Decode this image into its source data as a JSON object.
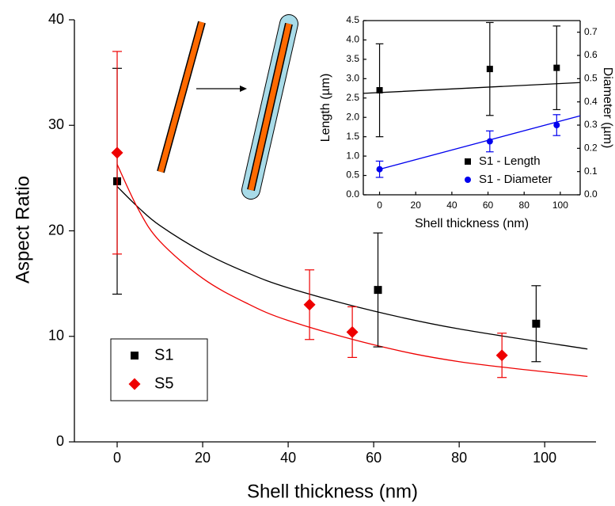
{
  "chart_data": [
    {
      "type": "scatter",
      "xlabel": "Shell thickness (nm)",
      "ylabel": "Aspect Ratio",
      "xlim": [
        -10,
        112
      ],
      "xticks": [
        0,
        20,
        40,
        60,
        80,
        100
      ],
      "ylim": [
        0,
        40
      ],
      "yticks": [
        0,
        10,
        20,
        30,
        40
      ],
      "legend": "lower left",
      "series": [
        {
          "name": "S1",
          "color": "#000000",
          "marker": "square",
          "x": [
            0,
            61,
            98
          ],
          "values": [
            24.7,
            14.4,
            11.2
          ],
          "errors": [
            10.7,
            5.4,
            3.6
          ]
        },
        {
          "name": "S5",
          "color": "#ee0000",
          "marker": "diamond",
          "x": [
            0,
            45,
            55,
            90
          ],
          "values": [
            27.4,
            13,
            10.4,
            8.2
          ],
          "errors": [
            9.6,
            3.3,
            2.4,
            2.1
          ]
        }
      ],
      "fits": [
        {
          "color": "#000000",
          "x": [
            0,
            5,
            10,
            20,
            30,
            40,
            60,
            80,
            110
          ],
          "y": [
            24.2,
            22.2,
            20.5,
            18,
            16.1,
            14.6,
            12.4,
            10.7,
            8.8
          ]
        },
        {
          "color": "#ee0000",
          "x": [
            0,
            5,
            10,
            20,
            30,
            40,
            60,
            80,
            110
          ],
          "y": [
            26.3,
            22,
            19,
            15.5,
            13.2,
            11.5,
            9.2,
            7.6,
            6.2
          ]
        }
      ]
    },
    {
      "type": "scatter",
      "xlabel": "Shell thickness (nm)",
      "ylabel": "Length (µm)",
      "y2label": "Diameter (µm)",
      "xlim": [
        -9,
        111
      ],
      "xticks": [
        0,
        20,
        40,
        60,
        80,
        100
      ],
      "ylim": [
        0,
        4.5
      ],
      "yticks": [
        {
          "value": 0,
          "label": "0.0"
        },
        0.5,
        {
          "value": 1,
          "label": "1.0"
        },
        1.5,
        {
          "value": 2,
          "label": "2.0"
        },
        2.5,
        {
          "value": 3,
          "label": "3.0"
        },
        3.5,
        {
          "value": 4,
          "label": "4.0"
        },
        4.5
      ],
      "y2lim": [
        0,
        0.75
      ],
      "y2ticks": [
        {
          "value": 0,
          "label": "0.0"
        },
        0.1,
        0.2,
        0.3,
        0.4,
        0.5,
        0.6,
        0.7
      ],
      "legend": "lower right",
      "series": [
        {
          "name": "S1 - Length",
          "color": "#000000",
          "marker": "square",
          "x": [
            0,
            61,
            98
          ],
          "values": [
            2.7,
            3.25,
            3.28
          ],
          "errors": [
            1.2,
            1.2,
            1.08
          ]
        },
        {
          "name": "S1 - Diameter",
          "color": "#0000ee",
          "marker": "circle",
          "axis": "y2",
          "x": [
            0,
            61,
            98
          ],
          "values": [
            0.11,
            0.23,
            0.3
          ],
          "errors": [
            0.035,
            0.045,
            0.045
          ]
        }
      ],
      "fits": [
        {
          "color": "#000000",
          "x": [
            -9,
            111
          ],
          "y": [
            2.62,
            2.9
          ]
        },
        {
          "color": "#0000ee",
          "axis": "y2",
          "x": [
            0,
            111
          ],
          "y": [
            0.11,
            0.34
          ]
        }
      ]
    }
  ]
}
